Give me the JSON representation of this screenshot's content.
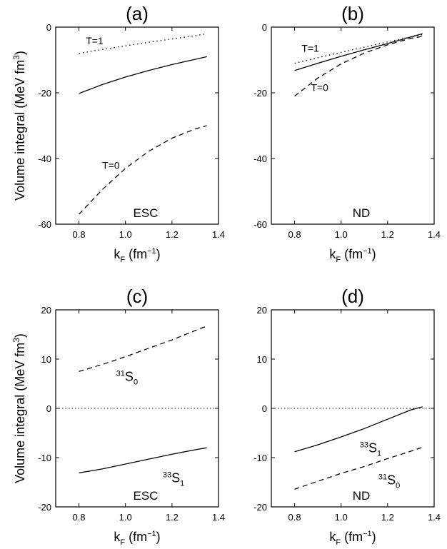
{
  "figure": {
    "ylabel_main": "Volume integral (MeV fm",
    "ylabel_sup": "3",
    "ylabel_close": ")",
    "xlabel_main": "k",
    "xlabel_sub": "F",
    "xlabel_unit": " (fm",
    "xlabel_sup": "−1",
    "xlabel_close": ")"
  },
  "chart_data": [
    {
      "panel": "(a)",
      "type": "line",
      "xlim": [
        0.7,
        1.4
      ],
      "ylim": [
        -60,
        0
      ],
      "xticks": [
        "0.8",
        "1.0",
        "1.2",
        "1.4"
      ],
      "yticks": [
        "-60",
        "-40",
        "-20",
        "0"
      ],
      "corner_label": "ESC",
      "series": [
        {
          "name": "T=1",
          "style": "dotted",
          "x": [
            0.8,
            0.9,
            1.0,
            1.1,
            1.2,
            1.3,
            1.35
          ],
          "y": [
            -8.0,
            -6.8,
            -5.7,
            -4.6,
            -3.6,
            -2.6,
            -2.0
          ]
        },
        {
          "name": "",
          "style": "solid",
          "x": [
            0.8,
            0.9,
            1.0,
            1.1,
            1.2,
            1.3,
            1.35
          ],
          "y": [
            -20.2,
            -17.5,
            -15.2,
            -13.2,
            -11.4,
            -9.8,
            -9.0
          ]
        },
        {
          "name": "T=0",
          "style": "dashed",
          "x": [
            0.8,
            0.9,
            1.0,
            1.1,
            1.2,
            1.3,
            1.35
          ],
          "y": [
            -57.0,
            -49.5,
            -43.0,
            -37.8,
            -33.8,
            -31.0,
            -30.0
          ]
        }
      ],
      "annotations": [
        {
          "text": "T=1",
          "sub": "",
          "sup": "",
          "x": 0.83,
          "y": -5.2
        },
        {
          "text": "T=0",
          "sub": "",
          "sup": "",
          "x": 0.9,
          "y": -43.2
        }
      ]
    },
    {
      "panel": "(b)",
      "type": "line",
      "xlim": [
        0.7,
        1.4
      ],
      "ylim": [
        -60,
        0
      ],
      "xticks": [
        "0.8",
        "1.0",
        "1.2",
        "1.4"
      ],
      "yticks": [
        "-60",
        "-40",
        "-20",
        "0"
      ],
      "corner_label": "ND",
      "series": [
        {
          "name": "T=1",
          "style": "dotted",
          "x": [
            0.8,
            0.9,
            1.0,
            1.1,
            1.2,
            1.3,
            1.35
          ],
          "y": [
            -11.0,
            -9.3,
            -7.7,
            -6.1,
            -4.5,
            -3.0,
            -2.3
          ]
        },
        {
          "name": "",
          "style": "solid",
          "x": [
            0.8,
            0.9,
            1.0,
            1.1,
            1.2,
            1.3,
            1.35
          ],
          "y": [
            -13.2,
            -11.0,
            -8.9,
            -6.9,
            -5.0,
            -3.0,
            -2.0
          ]
        },
        {
          "name": "T=0",
          "style": "dashed",
          "x": [
            0.8,
            0.9,
            1.0,
            1.1,
            1.2,
            1.3,
            1.35
          ],
          "y": [
            -21.0,
            -15.5,
            -11.2,
            -7.9,
            -5.4,
            -3.4,
            -2.8
          ]
        }
      ],
      "annotations": [
        {
          "text": "T=1",
          "sub": "",
          "sup": "",
          "x": 0.83,
          "y": -7.5
        },
        {
          "text": "T=0",
          "sub": "",
          "sup": "",
          "x": 0.87,
          "y": -19.5
        }
      ]
    },
    {
      "panel": "(c)",
      "type": "line",
      "xlim": [
        0.7,
        1.4
      ],
      "ylim": [
        -20,
        20
      ],
      "xticks": [
        "0.8",
        "1.0",
        "1.2",
        "1.4"
      ],
      "yticks": [
        "-20",
        "-10",
        "0",
        "10",
        "20"
      ],
      "corner_label": "ESC",
      "zero_line": true,
      "series": [
        {
          "name": "³¹S₀",
          "style": "dashed",
          "x": [
            0.8,
            0.9,
            1.0,
            1.1,
            1.2,
            1.3,
            1.35
          ],
          "y": [
            7.5,
            8.9,
            10.5,
            12.2,
            13.9,
            15.8,
            16.7
          ]
        },
        {
          "name": "³³S₁",
          "style": "solid",
          "x": [
            0.8,
            0.9,
            1.0,
            1.1,
            1.2,
            1.3,
            1.35
          ],
          "y": [
            -13.1,
            -12.3,
            -11.3,
            -10.3,
            -9.3,
            -8.4,
            -8.0
          ]
        }
      ],
      "annotations": [
        {
          "text": "S",
          "sup": "31",
          "sub": "0",
          "x": 0.96,
          "y": 5.6
        },
        {
          "text": "S",
          "sup": "33",
          "sub": "1",
          "x": 1.16,
          "y": -15.0
        }
      ]
    },
    {
      "panel": "(d)",
      "type": "line",
      "xlim": [
        0.7,
        1.4
      ],
      "ylim": [
        -20,
        20
      ],
      "xticks": [
        "0.8",
        "1.0",
        "1.2",
        "1.4"
      ],
      "yticks": [
        "-20",
        "-10",
        "0",
        "10",
        "20"
      ],
      "corner_label": "ND",
      "zero_line": true,
      "series": [
        {
          "name": "³³S₁",
          "style": "solid",
          "x": [
            0.8,
            0.9,
            1.0,
            1.1,
            1.2,
            1.3,
            1.35
          ],
          "y": [
            -8.8,
            -7.4,
            -5.8,
            -4.1,
            -2.2,
            -0.3,
            0.3
          ]
        },
        {
          "name": "³¹S₀",
          "style": "dashed",
          "x": [
            0.8,
            0.9,
            1.0,
            1.1,
            1.2,
            1.3,
            1.35
          ],
          "y": [
            -16.4,
            -14.8,
            -13.2,
            -11.8,
            -10.2,
            -8.7,
            -7.9
          ]
        }
      ],
      "annotations": [
        {
          "text": "S",
          "sup": "33",
          "sub": "1",
          "x": 1.08,
          "y": -8.9
        },
        {
          "text": "S",
          "sup": "31",
          "sub": "0",
          "x": 1.16,
          "y": -15.4
        }
      ]
    }
  ]
}
